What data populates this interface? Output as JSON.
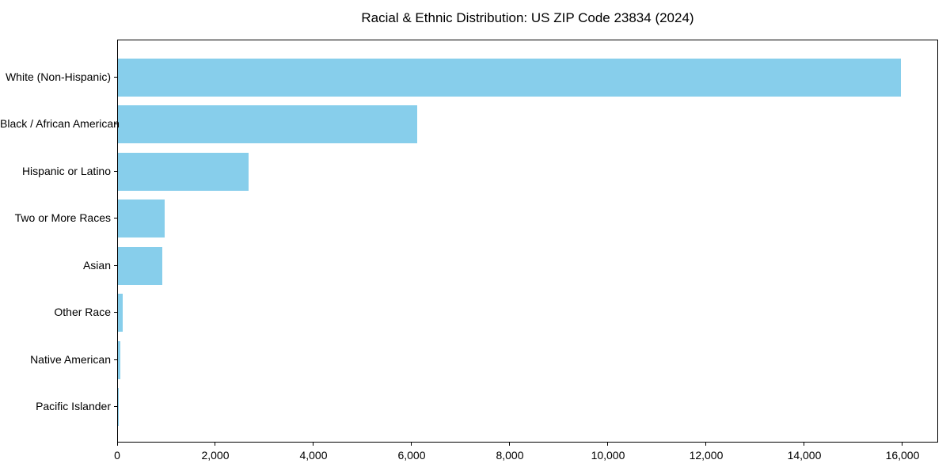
{
  "chart_data": {
    "type": "bar",
    "orientation": "horizontal",
    "title": "Racial & Ethnic Distribution: US ZIP Code 23834 (2024)",
    "categories": [
      "White (Non-Hispanic)",
      "Black / African American",
      "Hispanic or Latino",
      "Two or More Races",
      "Asian",
      "Other Race",
      "Native American",
      "Pacific Islander"
    ],
    "values": [
      15945,
      6100,
      2655,
      950,
      900,
      100,
      50,
      10
    ],
    "xlabel": "",
    "ylabel": "",
    "xlim": [
      0,
      16726
    ],
    "x_ticks": [
      0,
      2000,
      4000,
      6000,
      8000,
      10000,
      12000,
      14000,
      16000
    ],
    "x_tick_labels": [
      "0",
      "2,000",
      "4,000",
      "6,000",
      "8,000",
      "10,000",
      "12,000",
      "14,000",
      "16,000"
    ],
    "bar_color": "#87CEEB",
    "background_color": "#ffffff",
    "axis_color": "#000000",
    "grid": false,
    "legend": null
  }
}
